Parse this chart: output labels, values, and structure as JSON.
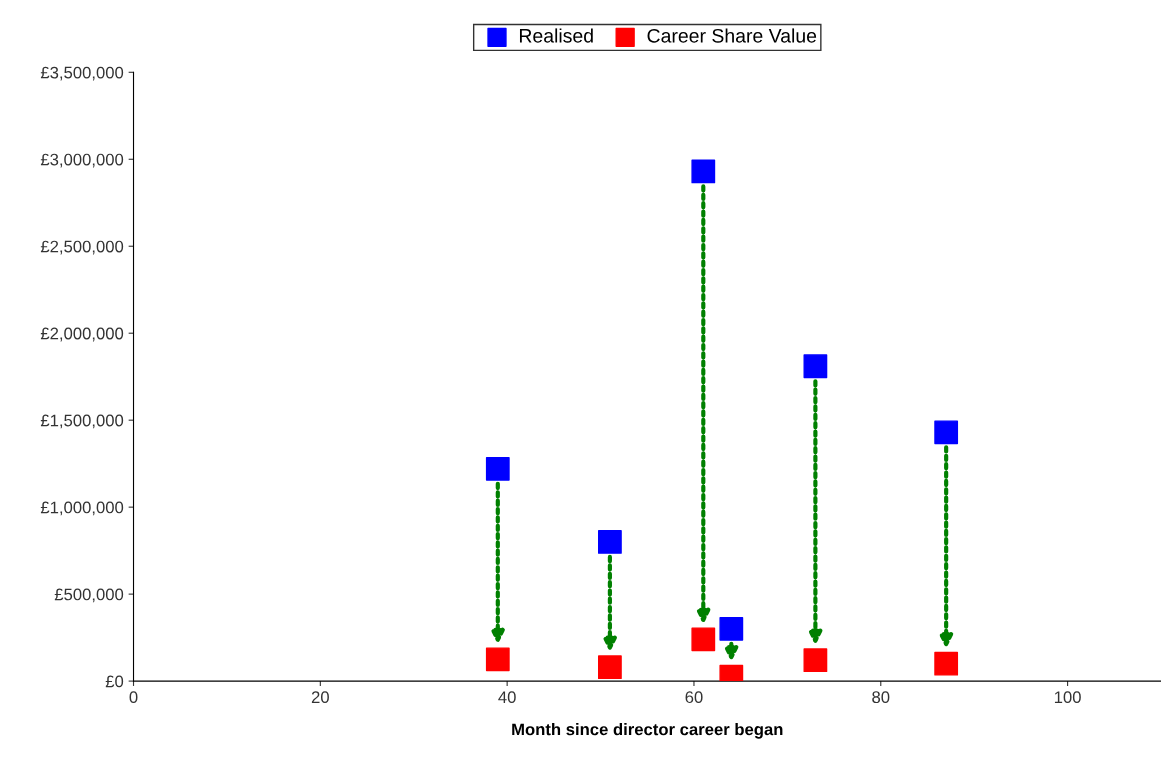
{
  "chart_data": {
    "type": "scatter",
    "xlabel": "Month since director career began",
    "x": [
      39,
      51,
      61,
      64,
      73,
      87
    ],
    "series": [
      {
        "name": "Realised",
        "color": "#0000ff",
        "values": [
          1220000,
          800000,
          2930000,
          300000,
          1810000,
          1430000
        ]
      },
      {
        "name": "Career Share Value",
        "color": "#ff0000",
        "values": [
          125000,
          80000,
          240000,
          25000,
          120000,
          100000
        ]
      }
    ],
    "xlim": [
      0,
      110
    ],
    "xticks": [
      0,
      20,
      40,
      60,
      80,
      100
    ],
    "ylim": [
      0,
      3500000
    ],
    "yticks": [
      {
        "value": 0,
        "label": "£0"
      },
      {
        "value": 500000,
        "label": "£500,000"
      },
      {
        "value": 1000000,
        "label": "£1,000,000"
      },
      {
        "value": 1500000,
        "label": "£1,500,000"
      },
      {
        "value": 2000000,
        "label": "£2,000,000"
      },
      {
        "value": 2500000,
        "label": "£2,500,000"
      },
      {
        "value": 3000000,
        "label": "£3,000,000"
      },
      {
        "value": 3500000,
        "label": "£3,500,000"
      }
    ],
    "marker": "square",
    "grid": false,
    "legend": "top"
  }
}
